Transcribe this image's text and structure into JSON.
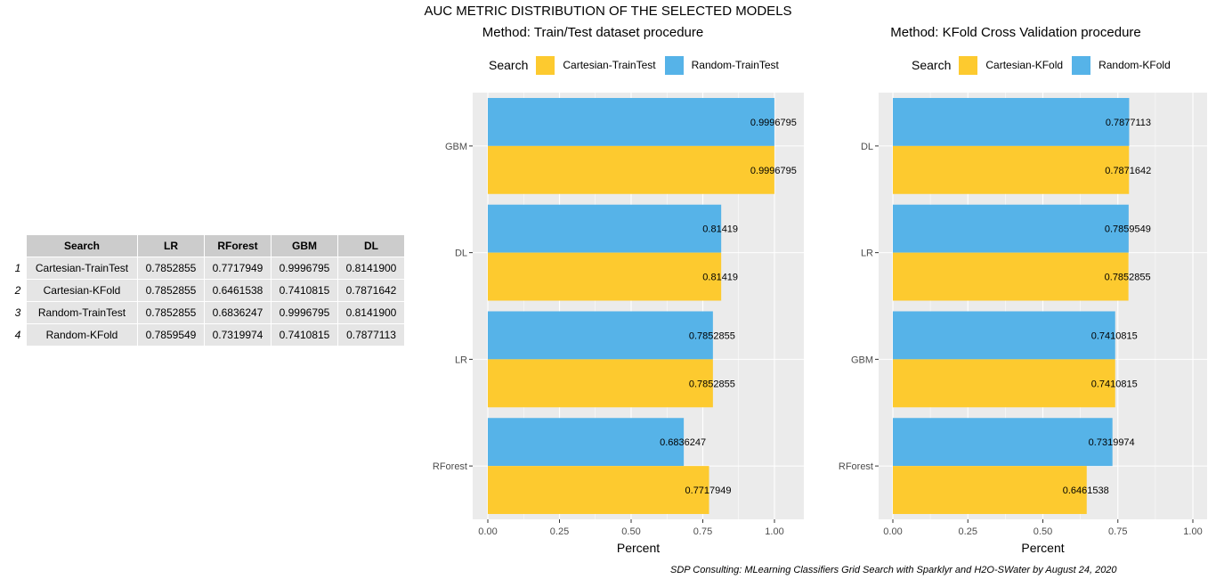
{
  "title": "AUC METRIC DISTRIBUTION OF THE SELECTED MODELS",
  "table": {
    "columns": [
      "Search",
      "LR",
      "RForest",
      "GBM",
      "DL"
    ],
    "rows": [
      {
        "idx": "1",
        "cells": [
          "Cartesian-TrainTest",
          "0.7852855",
          "0.7717949",
          "0.9996795",
          "0.8141900"
        ]
      },
      {
        "idx": "2",
        "cells": [
          "Cartesian-KFold",
          "0.7852855",
          "0.6461538",
          "0.7410815",
          "0.7871642"
        ]
      },
      {
        "idx": "3",
        "cells": [
          "Random-TrainTest",
          "0.7852855",
          "0.6836247",
          "0.9996795",
          "0.8141900"
        ]
      },
      {
        "idx": "4",
        "cells": [
          "Random-KFold",
          "0.7859549",
          "0.7319974",
          "0.7410815",
          "0.7877113"
        ]
      }
    ]
  },
  "colors": {
    "yellow": "#fdca2f",
    "blue": "#56b3e8",
    "panel_bg": "#ebebeb"
  },
  "panels": [
    {
      "subtitle": "Method: Train/Test dataset procedure",
      "legend": {
        "title": "Search",
        "items": [
          "Cartesian-TrainTest",
          "Random-TrainTest"
        ]
      }
    },
    {
      "subtitle": "Method: KFold Cross Validation procedure",
      "legend": {
        "title": "Search",
        "items": [
          "Cartesian-KFold",
          "Random-KFold"
        ]
      }
    }
  ],
  "chart_data": [
    {
      "type": "bar",
      "orientation": "horizontal",
      "title": "Method: Train/Test dataset procedure",
      "xlabel": "Percent",
      "ylabel": "",
      "xlim": [
        0,
        1
      ],
      "xticks": [
        "0.00",
        "0.25",
        "0.50",
        "0.75",
        "1.00"
      ],
      "categories": [
        "GBM",
        "DL",
        "LR",
        "RForest"
      ],
      "series": [
        {
          "name": "Random-TrainTest",
          "color": "#56b3e8",
          "values": [
            0.9996795,
            0.81419,
            0.7852855,
            0.6836247
          ],
          "labels": [
            "0.9996795",
            "0.81419",
            "0.7852855",
            "0.6836247"
          ]
        },
        {
          "name": "Cartesian-TrainTest",
          "color": "#fdca2f",
          "values": [
            0.9996795,
            0.81419,
            0.7852855,
            0.7717949
          ],
          "labels": [
            "0.9996795",
            "0.81419",
            "0.7852855",
            "0.7717949"
          ]
        }
      ]
    },
    {
      "type": "bar",
      "orientation": "horizontal",
      "title": "Method: KFold Cross Validation procedure",
      "xlabel": "Percent",
      "ylabel": "",
      "xlim": [
        0,
        1
      ],
      "xticks": [
        "0.00",
        "0.25",
        "0.50",
        "0.75",
        "1.00"
      ],
      "categories": [
        "DL",
        "LR",
        "GBM",
        "RForest"
      ],
      "series": [
        {
          "name": "Random-KFold",
          "color": "#56b3e8",
          "values": [
            0.7877113,
            0.7859549,
            0.7410815,
            0.7319974
          ],
          "labels": [
            "0.7877113",
            "0.7859549",
            "0.7410815",
            "0.7319974"
          ]
        },
        {
          "name": "Cartesian-KFold",
          "color": "#fdca2f",
          "values": [
            0.7871642,
            0.7852855,
            0.7410815,
            0.6461538
          ],
          "labels": [
            "0.7871642",
            "0.7852855",
            "0.7410815",
            "0.6461538"
          ]
        }
      ]
    }
  ],
  "footer": "SDP Consulting: MLearning Classifiers Grid Search with Sparklyr and H2O-SWater by August 24, 2020"
}
